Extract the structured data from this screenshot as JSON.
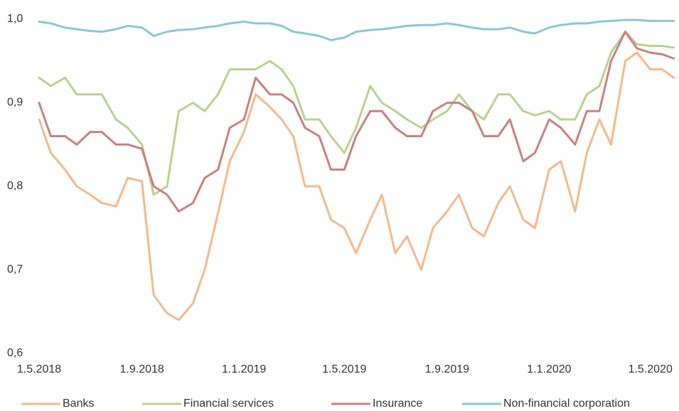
{
  "chart_data": {
    "type": "line",
    "x": [
      "2018-05-01",
      "2018-05-15",
      "2018-06-01",
      "2018-06-15",
      "2018-07-01",
      "2018-07-15",
      "2018-08-01",
      "2018-08-15",
      "2018-09-01",
      "2018-09-15",
      "2018-10-01",
      "2018-10-15",
      "2018-11-01",
      "2018-11-15",
      "2018-12-01",
      "2018-12-15",
      "2019-01-01",
      "2019-01-15",
      "2019-02-01",
      "2019-02-15",
      "2019-03-01",
      "2019-03-15",
      "2019-04-01",
      "2019-04-15",
      "2019-05-01",
      "2019-05-15",
      "2019-06-01",
      "2019-06-15",
      "2019-07-01",
      "2019-07-15",
      "2019-08-01",
      "2019-08-15",
      "2019-09-01",
      "2019-09-15",
      "2019-10-01",
      "2019-10-15",
      "2019-11-01",
      "2019-11-15",
      "2019-12-01",
      "2019-12-15",
      "2020-01-01",
      "2020-01-15",
      "2020-02-01",
      "2020-02-15",
      "2020-03-01",
      "2020-03-15",
      "2020-04-01",
      "2020-04-15",
      "2020-05-01",
      "2020-05-15",
      "2020-05-29"
    ],
    "series": [
      {
        "name": "Banks",
        "color": "#f6b98a",
        "values": [
          0.88,
          0.84,
          0.82,
          0.8,
          0.79,
          0.78,
          0.776,
          0.81,
          0.806,
          0.67,
          0.648,
          0.64,
          0.66,
          0.7,
          0.768,
          0.83,
          0.865,
          0.91,
          0.895,
          0.88,
          0.86,
          0.8,
          0.8,
          0.76,
          0.75,
          0.72,
          0.76,
          0.79,
          0.72,
          0.74,
          0.7,
          0.75,
          0.77,
          0.79,
          0.75,
          0.74,
          0.78,
          0.8,
          0.76,
          0.75,
          0.82,
          0.83,
          0.77,
          0.84,
          0.88,
          0.85,
          0.95,
          0.96,
          0.94,
          0.94,
          0.93
        ]
      },
      {
        "name": "Financial services",
        "color": "#b9d38f",
        "values": [
          0.93,
          0.92,
          0.93,
          0.91,
          0.91,
          0.91,
          0.88,
          0.87,
          0.85,
          0.79,
          0.8,
          0.89,
          0.9,
          0.89,
          0.91,
          0.94,
          0.94,
          0.94,
          0.95,
          0.94,
          0.92,
          0.88,
          0.88,
          0.86,
          0.84,
          0.87,
          0.92,
          0.9,
          0.89,
          0.88,
          0.87,
          0.88,
          0.89,
          0.91,
          0.89,
          0.88,
          0.91,
          0.91,
          0.89,
          0.885,
          0.89,
          0.88,
          0.88,
          0.91,
          0.92,
          0.96,
          0.985,
          0.97,
          0.968,
          0.968,
          0.966
        ]
      },
      {
        "name": "Insurance",
        "color": "#cc8082",
        "values": [
          0.9,
          0.86,
          0.86,
          0.85,
          0.865,
          0.865,
          0.85,
          0.85,
          0.845,
          0.8,
          0.79,
          0.77,
          0.78,
          0.81,
          0.82,
          0.87,
          0.88,
          0.93,
          0.91,
          0.91,
          0.9,
          0.87,
          0.86,
          0.82,
          0.82,
          0.86,
          0.89,
          0.89,
          0.87,
          0.86,
          0.86,
          0.89,
          0.9,
          0.9,
          0.89,
          0.86,
          0.86,
          0.88,
          0.83,
          0.84,
          0.88,
          0.87,
          0.85,
          0.89,
          0.89,
          0.95,
          0.985,
          0.965,
          0.96,
          0.958,
          0.953
        ]
      },
      {
        "name": "Non-financial corporation",
        "color": "#8ac8d6",
        "values": [
          0.997,
          0.995,
          0.99,
          0.988,
          0.986,
          0.985,
          0.988,
          0.992,
          0.99,
          0.98,
          0.985,
          0.987,
          0.988,
          0.99,
          0.992,
          0.995,
          0.997,
          0.995,
          0.995,
          0.992,
          0.985,
          0.983,
          0.98,
          0.975,
          0.978,
          0.985,
          0.987,
          0.988,
          0.99,
          0.992,
          0.993,
          0.993,
          0.995,
          0.993,
          0.99,
          0.988,
          0.988,
          0.99,
          0.985,
          0.983,
          0.99,
          0.993,
          0.995,
          0.995,
          0.997,
          0.998,
          0.999,
          0.999,
          0.998,
          0.998,
          0.998
        ]
      }
    ],
    "xlim": [
      "2018-05-01",
      "2020-05-31"
    ],
    "xticks": [
      {
        "value": "2018-05-01",
        "label": "1.5.2018"
      },
      {
        "value": "2018-09-01",
        "label": "1.9.2018"
      },
      {
        "value": "2019-01-01",
        "label": "1.1.2019"
      },
      {
        "value": "2019-05-01",
        "label": "1.5.2019"
      },
      {
        "value": "2019-09-01",
        "label": "1.9.2019"
      },
      {
        "value": "2020-01-01",
        "label": "1.1.2020"
      },
      {
        "value": "2020-05-01",
        "label": "1.5.2020"
      }
    ],
    "ylim": [
      0.6,
      1.0
    ],
    "yticks": [
      {
        "value": 0.6,
        "label": "0,6"
      },
      {
        "value": 0.7,
        "label": "0,7"
      },
      {
        "value": 0.8,
        "label": "0,8"
      },
      {
        "value": 0.9,
        "label": "0,9"
      },
      {
        "value": 1.0,
        "label": "1,0"
      }
    ],
    "grid": false,
    "legend": "bottom"
  }
}
